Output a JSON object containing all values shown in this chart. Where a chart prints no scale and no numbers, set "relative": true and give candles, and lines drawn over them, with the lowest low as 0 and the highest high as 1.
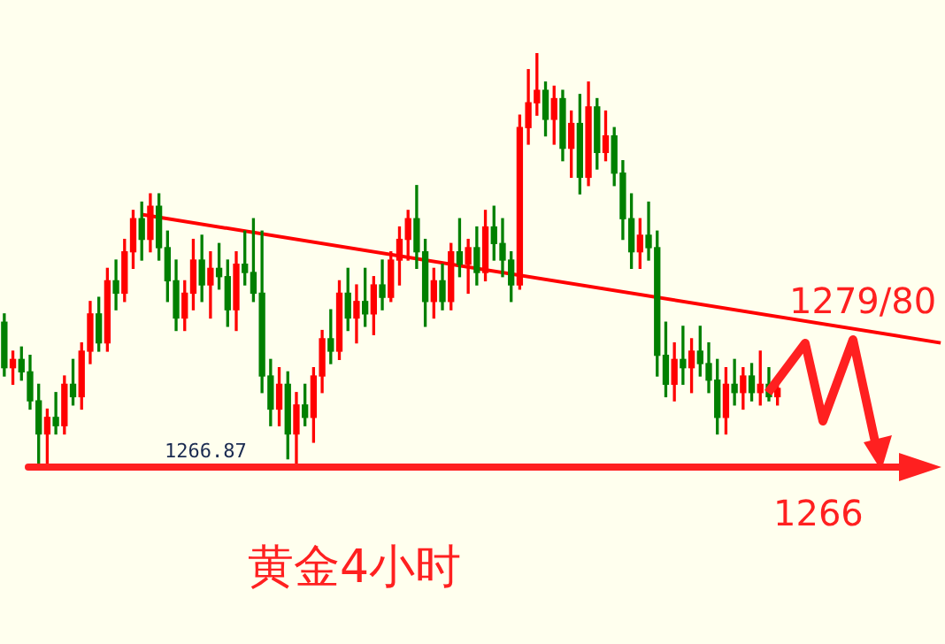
{
  "chart_data": {
    "type": "candlestick",
    "title": "黄金4小时",
    "relative": true,
    "tick_labels": false,
    "annotations": [
      "1279/80",
      "1266",
      "1266.87"
    ],
    "categories": [
      null,
      null,
      null,
      null,
      null,
      null,
      null,
      null,
      null,
      null,
      null,
      null,
      null,
      null,
      null,
      null,
      null,
      null,
      null,
      null,
      null,
      null,
      null,
      null,
      null,
      null,
      null,
      null,
      null,
      null,
      null,
      null,
      null,
      null,
      null,
      null,
      null,
      null,
      null,
      null,
      null,
      null,
      null,
      null,
      null,
      null,
      null,
      null,
      null,
      null,
      null,
      null,
      null,
      null,
      null,
      null,
      null,
      null,
      null,
      null,
      null,
      null,
      null,
      null,
      null,
      null,
      null,
      null,
      null,
      null,
      null,
      null,
      null,
      null,
      null,
      null,
      null,
      null,
      null,
      null,
      null,
      null,
      null,
      null,
      null,
      null,
      null,
      null,
      null,
      null,
      null,
      null,
      null,
      null,
      null,
      null,
      null,
      null,
      null,
      null,
      null,
      null,
      null,
      null,
      null,
      null,
      null,
      null,
      null,
      null
    ],
    "ohlc": [
      [
        0.35,
        0.37,
        0.22,
        0.24
      ],
      [
        0.24,
        0.28,
        0.2,
        0.26
      ],
      [
        0.26,
        0.29,
        0.21,
        0.23
      ],
      [
        0.23,
        0.27,
        0.14,
        0.16
      ],
      [
        0.16,
        0.2,
        0.01,
        0.08
      ],
      [
        0.08,
        0.14,
        0.0,
        0.12
      ],
      [
        0.12,
        0.18,
        0.08,
        0.1
      ],
      [
        0.1,
        0.22,
        0.08,
        0.2
      ],
      [
        0.2,
        0.26,
        0.15,
        0.17
      ],
      [
        0.17,
        0.3,
        0.14,
        0.28
      ],
      [
        0.28,
        0.4,
        0.25,
        0.37
      ],
      [
        0.37,
        0.41,
        0.28,
        0.3
      ],
      [
        0.3,
        0.48,
        0.28,
        0.45
      ],
      [
        0.45,
        0.5,
        0.38,
        0.42
      ],
      [
        0.42,
        0.55,
        0.4,
        0.52
      ],
      [
        0.52,
        0.62,
        0.48,
        0.6
      ],
      [
        0.6,
        0.64,
        0.5,
        0.55
      ],
      [
        0.55,
        0.66,
        0.52,
        0.63
      ],
      [
        0.63,
        0.66,
        0.5,
        0.53
      ],
      [
        0.53,
        0.57,
        0.4,
        0.45
      ],
      [
        0.45,
        0.5,
        0.33,
        0.36
      ],
      [
        0.36,
        0.45,
        0.33,
        0.42
      ],
      [
        0.42,
        0.55,
        0.38,
        0.5
      ],
      [
        0.5,
        0.56,
        0.4,
        0.44
      ],
      [
        0.44,
        0.52,
        0.36,
        0.48
      ],
      [
        0.48,
        0.54,
        0.43,
        0.46
      ],
      [
        0.46,
        0.5,
        0.34,
        0.38
      ],
      [
        0.38,
        0.52,
        0.33,
        0.49
      ],
      [
        0.49,
        0.57,
        0.44,
        0.47
      ],
      [
        0.47,
        0.6,
        0.4,
        0.42
      ],
      [
        0.42,
        0.57,
        0.18,
        0.22
      ],
      [
        0.22,
        0.26,
        0.1,
        0.14
      ],
      [
        0.14,
        0.24,
        0.1,
        0.2
      ],
      [
        0.2,
        0.23,
        0.02,
        0.08
      ],
      [
        0.08,
        0.18,
        0.0,
        0.15
      ],
      [
        0.15,
        0.2,
        0.1,
        0.12
      ],
      [
        0.12,
        0.24,
        0.06,
        0.22
      ],
      [
        0.22,
        0.33,
        0.18,
        0.31
      ],
      [
        0.31,
        0.38,
        0.25,
        0.28
      ],
      [
        0.28,
        0.45,
        0.26,
        0.42
      ],
      [
        0.42,
        0.48,
        0.33,
        0.36
      ],
      [
        0.36,
        0.44,
        0.3,
        0.4
      ],
      [
        0.4,
        0.48,
        0.34,
        0.37
      ],
      [
        0.37,
        0.46,
        0.32,
        0.44
      ],
      [
        0.44,
        0.5,
        0.38,
        0.41
      ],
      [
        0.41,
        0.52,
        0.4,
        0.5
      ],
      [
        0.5,
        0.58,
        0.44,
        0.55
      ],
      [
        0.55,
        0.62,
        0.5,
        0.6
      ],
      [
        0.6,
        0.68,
        0.48,
        0.52
      ],
      [
        0.52,
        0.55,
        0.34,
        0.4
      ],
      [
        0.4,
        0.48,
        0.36,
        0.45
      ],
      [
        0.45,
        0.49,
        0.38,
        0.4
      ],
      [
        0.4,
        0.54,
        0.38,
        0.52
      ],
      [
        0.52,
        0.6,
        0.46,
        0.49
      ],
      [
        0.49,
        0.55,
        0.42,
        0.53
      ],
      [
        0.53,
        0.58,
        0.44,
        0.47
      ],
      [
        0.47,
        0.62,
        0.45,
        0.58
      ],
      [
        0.58,
        0.63,
        0.5,
        0.54
      ],
      [
        0.54,
        0.6,
        0.46,
        0.5
      ],
      [
        0.5,
        0.52,
        0.4,
        0.44
      ],
      [
        0.44,
        0.85,
        0.43,
        0.82
      ],
      [
        0.82,
        0.96,
        0.78,
        0.88
      ],
      [
        0.88,
        1.0,
        0.85,
        0.91
      ],
      [
        0.91,
        0.93,
        0.8,
        0.84
      ],
      [
        0.84,
        0.92,
        0.78,
        0.89
      ],
      [
        0.89,
        0.91,
        0.74,
        0.77
      ],
      [
        0.77,
        0.86,
        0.7,
        0.83
      ],
      [
        0.83,
        0.9,
        0.66,
        0.7
      ],
      [
        0.7,
        0.93,
        0.68,
        0.87
      ],
      [
        0.87,
        0.89,
        0.72,
        0.76
      ],
      [
        0.76,
        0.86,
        0.74,
        0.8
      ],
      [
        0.8,
        0.82,
        0.68,
        0.71
      ],
      [
        0.71,
        0.74,
        0.55,
        0.6
      ],
      [
        0.6,
        0.66,
        0.48,
        0.52
      ],
      [
        0.52,
        0.6,
        0.48,
        0.56
      ],
      [
        0.56,
        0.64,
        0.5,
        0.53
      ],
      [
        0.53,
        0.57,
        0.22,
        0.27
      ],
      [
        0.27,
        0.35,
        0.17,
        0.2
      ],
      [
        0.2,
        0.3,
        0.16,
        0.26
      ],
      [
        0.26,
        0.34,
        0.2,
        0.24
      ],
      [
        0.24,
        0.31,
        0.18,
        0.28
      ],
      [
        0.28,
        0.34,
        0.22,
        0.25
      ],
      [
        0.25,
        0.3,
        0.18,
        0.21
      ],
      [
        0.21,
        0.26,
        0.08,
        0.12
      ],
      [
        0.12,
        0.24,
        0.08,
        0.2
      ],
      [
        0.2,
        0.26,
        0.15,
        0.18
      ],
      [
        0.18,
        0.24,
        0.14,
        0.22
      ],
      [
        0.22,
        0.25,
        0.16,
        0.18
      ],
      [
        0.18,
        0.28,
        0.15,
        0.2
      ],
      [
        0.2,
        0.24,
        0.16,
        0.17
      ],
      [
        0.17,
        0.21,
        0.15,
        0.19
      ],
      null,
      null,
      null,
      null,
      null,
      null,
      null,
      null,
      null,
      null,
      null,
      null,
      null,
      null,
      null,
      null,
      null,
      null,
      null
    ],
    "colors": [
      "#008000",
      "#ff0000",
      "#008000",
      "#008000",
      "#008000",
      "#ff0000",
      "#008000",
      "#ff0000",
      "#008000",
      "#ff0000",
      "#ff0000",
      "#008000",
      "#ff0000",
      "#008000",
      "#ff0000",
      "#ff0000",
      "#008000",
      "#ff0000",
      "#008000",
      "#008000",
      "#008000",
      "#ff0000",
      "#ff0000",
      "#008000",
      "#ff0000",
      "#008000",
      "#008000",
      "#ff0000",
      "#008000",
      "#008000",
      "#008000",
      "#008000",
      "#ff0000",
      "#008000",
      "#ff0000",
      "#008000",
      "#ff0000",
      "#ff0000",
      "#008000",
      "#ff0000",
      "#008000",
      "#ff0000",
      "#008000",
      "#ff0000",
      "#008000",
      "#ff0000",
      "#ff0000",
      "#ff0000",
      "#008000",
      "#008000",
      "#ff0000",
      "#008000",
      "#ff0000",
      "#008000",
      "#ff0000",
      "#008000",
      "#ff0000",
      "#008000",
      "#008000",
      "#008000",
      "#ff0000",
      "#ff0000",
      "#ff0000",
      "#008000",
      "#ff0000",
      "#008000",
      "#ff0000",
      "#008000",
      "#ff0000",
      "#008000",
      "#ff0000",
      "#008000",
      "#008000",
      "#008000",
      "#ff0000",
      "#008000",
      "#008000",
      "#008000",
      "#ff0000",
      "#008000",
      "#ff0000",
      "#008000",
      "#008000",
      "#008000",
      "#ff0000",
      "#008000",
      "#ff0000",
      "#008000",
      "#ff0000",
      "#008000",
      "#ff0000",
      null,
      null,
      null,
      null,
      null,
      null,
      null,
      null,
      null,
      null,
      null,
      null,
      null,
      null,
      null,
      null,
      null,
      null,
      null
    ],
    "series": [
      {
        "type": "line",
        "color": "#ff0000",
        "values": [
          null,
          null,
          null,
          null,
          null,
          null,
          null,
          null,
          null,
          null,
          null,
          null,
          null,
          null,
          null,
          null,
          0.61,
          null,
          null,
          null,
          null,
          null,
          null,
          null,
          null,
          null,
          null,
          null,
          null,
          null,
          null,
          null,
          null,
          null,
          null,
          null,
          null,
          null,
          null,
          null,
          null,
          null,
          null,
          null,
          null,
          null,
          null,
          null,
          null,
          null,
          null,
          null,
          null,
          null,
          null,
          null,
          null,
          null,
          null,
          null,
          null,
          null,
          null,
          null,
          null,
          null,
          null,
          null,
          null,
          null,
          null,
          null,
          null,
          null,
          null,
          null,
          null,
          null,
          null,
          null,
          null,
          null,
          null,
          null,
          null,
          null,
          null,
          null,
          null,
          null,
          null,
          null,
          null,
          null,
          null,
          null,
          null,
          null,
          null,
          null,
          null,
          null,
          null,
          null,
          null,
          null,
          null,
          null,
          null,
          0.3
        ]
      }
    ],
    "ref_lines": [
      {
        "axis": "y",
        "value": 0,
        "color": "#ff2020"
      }
    ]
  }
}
